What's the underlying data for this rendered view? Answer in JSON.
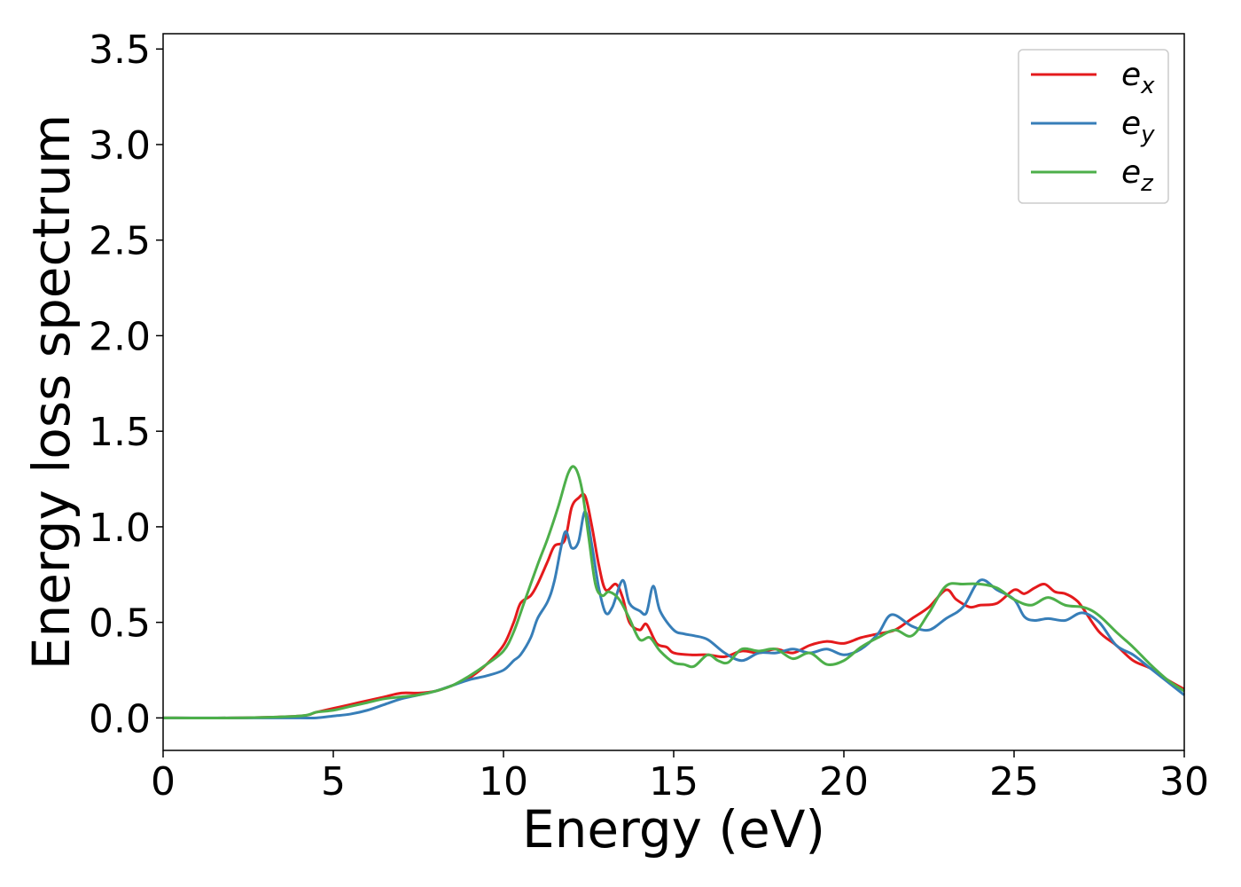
{
  "chart_data": {
    "type": "line",
    "title": "",
    "xlabel": "Energy (eV)",
    "ylabel": "Energy loss spectrum",
    "xlim": [
      0,
      30
    ],
    "ylim": [
      -0.17,
      3.58
    ],
    "xticks": [
      0,
      5,
      10,
      15,
      20,
      25,
      30
    ],
    "yticks": [
      0.0,
      0.5,
      1.0,
      1.5,
      2.0,
      2.5,
      3.0,
      3.5
    ],
    "xtick_labels": [
      "0",
      "5",
      "10",
      "15",
      "20",
      "25",
      "30"
    ],
    "ytick_labels": [
      "0.0",
      "0.5",
      "1.0",
      "1.5",
      "2.0",
      "2.5",
      "3.0",
      "3.5"
    ],
    "grid": false,
    "legend": "top-right",
    "series": [
      {
        "name": "e",
        "subscript": "x",
        "color": "#e41a1c",
        "x": [
          0,
          2,
          4,
          4.5,
          5,
          5.5,
          6,
          6.5,
          7,
          7.5,
          8,
          8.5,
          9,
          9.5,
          10,
          10.3,
          10.5,
          10.8,
          11,
          11.3,
          11.5,
          11.8,
          12,
          12.2,
          12.4,
          12.6,
          12.8,
          13,
          13.3,
          13.5,
          13.7,
          14,
          14.2,
          14.5,
          14.8,
          15,
          15.5,
          16,
          16.5,
          17,
          17.5,
          18,
          18.5,
          19,
          19.5,
          20,
          20.5,
          21,
          21.5,
          22,
          22.5,
          23,
          23.3,
          23.7,
          24,
          24.5,
          25,
          25.3,
          25.6,
          25.9,
          26.2,
          26.5,
          26.8,
          27,
          27.5,
          28,
          28.5,
          29,
          29.5,
          30
        ],
        "y": [
          0.0,
          0.0,
          0.01,
          0.03,
          0.05,
          0.07,
          0.09,
          0.11,
          0.13,
          0.13,
          0.14,
          0.17,
          0.21,
          0.28,
          0.38,
          0.5,
          0.6,
          0.64,
          0.7,
          0.82,
          0.9,
          0.93,
          1.1,
          1.15,
          1.16,
          1.0,
          0.8,
          0.67,
          0.7,
          0.63,
          0.5,
          0.46,
          0.49,
          0.39,
          0.37,
          0.34,
          0.33,
          0.33,
          0.32,
          0.35,
          0.34,
          0.36,
          0.34,
          0.38,
          0.4,
          0.39,
          0.42,
          0.44,
          0.46,
          0.52,
          0.58,
          0.67,
          0.62,
          0.58,
          0.59,
          0.6,
          0.67,
          0.65,
          0.68,
          0.7,
          0.66,
          0.65,
          0.62,
          0.58,
          0.45,
          0.38,
          0.3,
          0.26,
          0.2,
          0.15
        ]
      },
      {
        "name": "e",
        "subscript": "y",
        "color": "#377eb8",
        "x": [
          0,
          2,
          4,
          4.5,
          5,
          5.5,
          6,
          6.5,
          7,
          7.5,
          8,
          8.5,
          9,
          9.5,
          10,
          10.3,
          10.5,
          10.8,
          11,
          11.3,
          11.5,
          11.8,
          12,
          12.2,
          12.4,
          12.6,
          12.8,
          13,
          13.2,
          13.5,
          13.7,
          14,
          14.2,
          14.4,
          14.6,
          15,
          15.3,
          15.6,
          16,
          16.5,
          17,
          17.5,
          18,
          18.5,
          19,
          19.5,
          20,
          20.5,
          21,
          21.4,
          22,
          22.5,
          23,
          23.5,
          24,
          24.5,
          25,
          25.3,
          25.6,
          26,
          26.5,
          27,
          27.5,
          28,
          28.5,
          29,
          29.5,
          30
        ],
        "y": [
          0.0,
          0.0,
          0.0,
          0.0,
          0.01,
          0.02,
          0.04,
          0.07,
          0.1,
          0.12,
          0.14,
          0.17,
          0.2,
          0.22,
          0.25,
          0.3,
          0.33,
          0.42,
          0.52,
          0.61,
          0.72,
          0.97,
          0.89,
          0.92,
          1.08,
          0.9,
          0.68,
          0.55,
          0.58,
          0.72,
          0.6,
          0.56,
          0.55,
          0.69,
          0.56,
          0.46,
          0.44,
          0.43,
          0.41,
          0.34,
          0.3,
          0.34,
          0.34,
          0.36,
          0.34,
          0.36,
          0.33,
          0.36,
          0.44,
          0.54,
          0.48,
          0.46,
          0.52,
          0.58,
          0.72,
          0.67,
          0.62,
          0.53,
          0.51,
          0.52,
          0.51,
          0.55,
          0.5,
          0.38,
          0.33,
          0.26,
          0.19,
          0.12
        ]
      },
      {
        "name": "e",
        "subscript": "z",
        "color": "#4daf4a",
        "x": [
          0,
          2,
          4,
          4.5,
          5,
          5.5,
          6,
          6.5,
          7,
          7.5,
          8,
          8.5,
          9,
          9.5,
          10,
          10.3,
          10.6,
          11,
          11.3,
          11.6,
          11.9,
          12.1,
          12.3,
          12.5,
          12.7,
          12.9,
          13.1,
          13.4,
          13.7,
          14,
          14.3,
          14.6,
          15,
          15.3,
          15.6,
          16,
          16.3,
          16.6,
          17,
          17.5,
          18,
          18.5,
          19,
          19.5,
          20,
          20.5,
          21,
          21.5,
          22,
          22.5,
          23,
          23.5,
          24,
          24.5,
          25,
          25.5,
          26,
          26.5,
          27,
          27.3,
          27.6,
          28,
          28.5,
          29,
          29.5,
          30
        ],
        "y": [
          0.0,
          0.0,
          0.01,
          0.03,
          0.04,
          0.06,
          0.08,
          0.1,
          0.11,
          0.12,
          0.14,
          0.17,
          0.22,
          0.28,
          0.35,
          0.45,
          0.6,
          0.8,
          0.94,
          1.1,
          1.28,
          1.31,
          1.2,
          0.95,
          0.7,
          0.64,
          0.66,
          0.62,
          0.52,
          0.41,
          0.42,
          0.35,
          0.29,
          0.28,
          0.27,
          0.33,
          0.3,
          0.29,
          0.36,
          0.35,
          0.36,
          0.31,
          0.34,
          0.28,
          0.3,
          0.37,
          0.42,
          0.46,
          0.43,
          0.55,
          0.69,
          0.7,
          0.7,
          0.68,
          0.62,
          0.59,
          0.63,
          0.59,
          0.58,
          0.56,
          0.52,
          0.45,
          0.37,
          0.28,
          0.2,
          0.14
        ]
      }
    ]
  }
}
